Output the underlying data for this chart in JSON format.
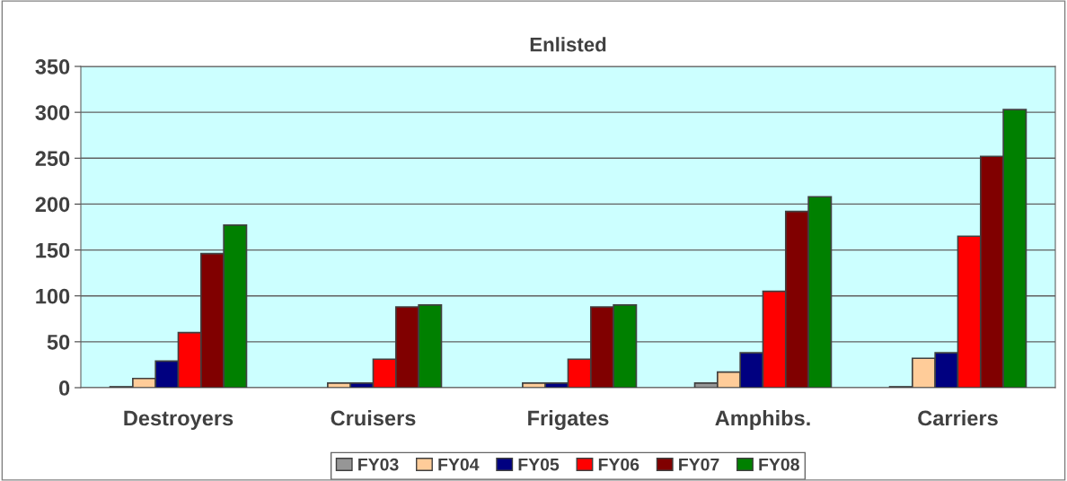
{
  "chart_data": {
    "type": "bar",
    "title": "Enlisted",
    "categories": [
      "Destroyers",
      "Cruisers",
      "Frigates",
      "Amphibs.",
      "Carriers"
    ],
    "series": [
      {
        "name": "FY03",
        "color": "#969696",
        "values": [
          1,
          0,
          0,
          5,
          1
        ]
      },
      {
        "name": "FY04",
        "color": "#ffcc99",
        "values": [
          10,
          5,
          5,
          17,
          32
        ]
      },
      {
        "name": "FY05",
        "color": "#000080",
        "values": [
          29,
          5,
          5,
          38,
          38
        ]
      },
      {
        "name": "FY06",
        "color": "#ff0000",
        "values": [
          60,
          31,
          31,
          105,
          165
        ]
      },
      {
        "name": "FY07",
        "color": "#800000",
        "values": [
          146,
          88,
          88,
          192,
          252
        ]
      },
      {
        "name": "FY08",
        "color": "#008000",
        "values": [
          177,
          90,
          90,
          208,
          303
        ]
      }
    ],
    "ylim": [
      0,
      350
    ],
    "yticks": [
      0,
      50,
      100,
      150,
      200,
      250,
      300,
      350
    ],
    "grid": "y",
    "legend": "bottom"
  }
}
